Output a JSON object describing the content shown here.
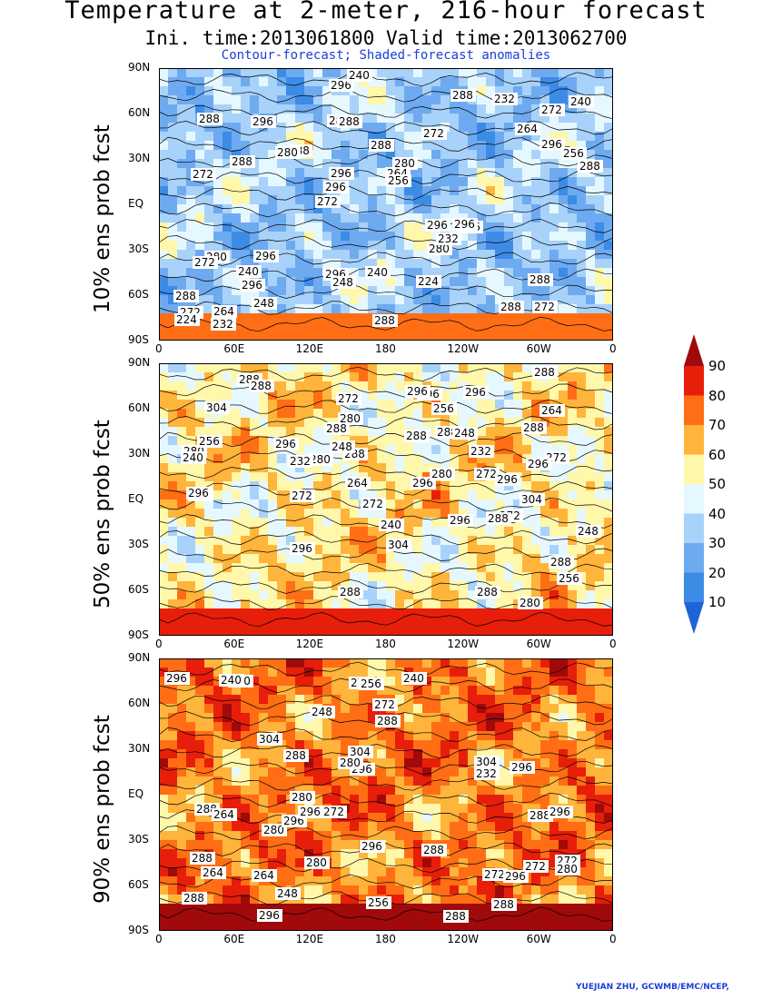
{
  "title": "Temperature at 2-meter, 216-hour forecast",
  "subtitle": "Ini. time:2013061800    Valid time:2013062700",
  "note": "Contour-forecast; Shaded-forecast anomalies",
  "credit": "YUEJIAN ZHU, GCWMB/EMC/NCEP,",
  "lat_ticks": [
    "90N",
    "60N",
    "30N",
    "EQ",
    "30S",
    "60S",
    "90S"
  ],
  "lon_ticks": [
    "0",
    "60E",
    "120E",
    "180",
    "120W",
    "60W",
    "0"
  ],
  "panels": [
    {
      "label": "10% ens prob fcst",
      "warmth": 0.25,
      "contours": [
        "272",
        "272",
        "272",
        "272",
        "272",
        "264",
        "280",
        "288",
        "280",
        "288",
        "288",
        "296",
        "288",
        "280",
        "296",
        "288",
        "296",
        "288",
        "296",
        "296",
        "296",
        "296",
        "296",
        "296",
        "288",
        "296",
        "288",
        "288",
        "296",
        "288",
        "280",
        "288",
        "280",
        "248",
        "256",
        "264",
        "272",
        "248",
        "256",
        "272",
        "264",
        "240",
        "232",
        "224",
        "240",
        "232",
        "224",
        "240",
        "232",
        "240"
      ]
    },
    {
      "label": "50% ens prob fcst",
      "warmth": 0.6,
      "contours": [
        "272",
        "272",
        "272",
        "272",
        "272",
        "264",
        "280",
        "288",
        "288",
        "288",
        "280",
        "288",
        "288",
        "296",
        "288",
        "296",
        "280",
        "296",
        "288",
        "296",
        "304",
        "296",
        "304",
        "296",
        "304",
        "288",
        "296",
        "296",
        "296",
        "288",
        "288",
        "296",
        "288",
        "280",
        "288",
        "280",
        "272",
        "264",
        "264",
        "256",
        "248",
        "240",
        "240",
        "256",
        "248",
        "256",
        "232",
        "232",
        "248"
      ]
    },
    {
      "label": "90% ens prob fcst",
      "warmth": 0.88,
      "contours": [
        "272",
        "272",
        "288",
        "280",
        "288",
        "296",
        "280",
        "272",
        "288",
        "296",
        "288",
        "304",
        "288",
        "296",
        "280",
        "296",
        "304",
        "304",
        "296",
        "296",
        "296",
        "296",
        "288",
        "296",
        "288",
        "280",
        "288",
        "288",
        "280",
        "280",
        "272",
        "272",
        "264",
        "256",
        "248",
        "232",
        "240",
        "256",
        "248",
        "264",
        "240",
        "264",
        "272"
      ]
    }
  ],
  "colorbar": {
    "levels": [
      "10",
      "20",
      "30",
      "40",
      "50",
      "60",
      "70",
      "80",
      "90"
    ],
    "colors": [
      "#1e64d8",
      "#3c8ce6",
      "#6eaaf0",
      "#a8d2fa",
      "#e6f8ff",
      "#fff7aa",
      "#ffb43c",
      "#ff6e14",
      "#e61e0a",
      "#a00a0a"
    ]
  }
}
